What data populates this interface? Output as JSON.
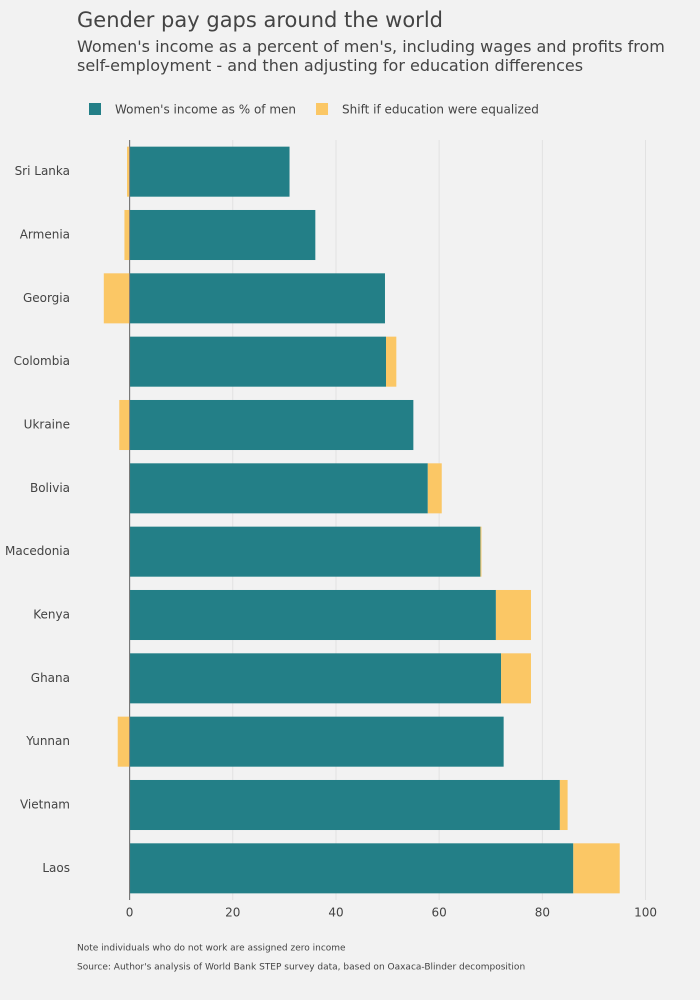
{
  "chart_data": {
    "type": "bar",
    "orientation": "horizontal",
    "stacked": true,
    "title": "Gender pay gaps around the world",
    "subtitle": "Women's income as a percent of men's, including wages and profits from self-employment - and then adjusting for education differences",
    "categories": [
      "Sri Lanka",
      "Armenia",
      "Georgia",
      "Colombia",
      "Ukraine",
      "Bolivia",
      "Macedonia",
      "Kenya",
      "Ghana",
      "Yunnan",
      "Vietnam",
      "Laos"
    ],
    "series": [
      {
        "name": "Women's income as % of men",
        "color": "#237f87",
        "values": [
          31,
          36,
          49.5,
          49.7,
          55,
          57.8,
          68,
          71,
          72,
          72.5,
          83.4,
          86
        ]
      },
      {
        "name": "Shift if education were equalized",
        "color": "#fbc765",
        "values": [
          -0.5,
          -1,
          -5,
          2,
          -2,
          2.7,
          0.2,
          6.8,
          5.8,
          -2.3,
          1.5,
          9
        ]
      }
    ],
    "xlim": [
      -10,
      103
    ],
    "xticks": [
      0,
      20,
      40,
      60,
      80,
      100
    ],
    "grid": true,
    "note": "Note individuals who do not work are assigned zero income",
    "source": "Source: Author's analysis of World Bank STEP survey data, based on Oaxaca-Blinder decomposition"
  }
}
